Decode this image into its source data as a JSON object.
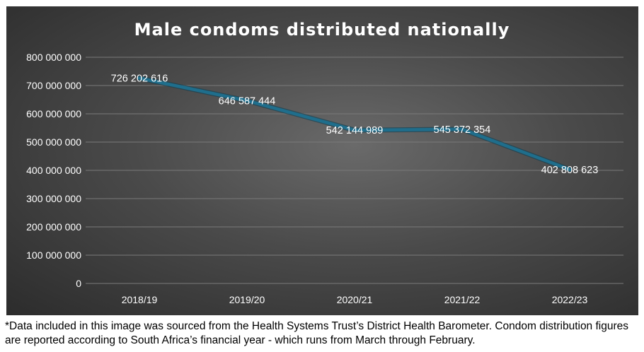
{
  "chart_data": {
    "type": "line",
    "title": "Male condoms distributed nationally",
    "categories": [
      "2018/19",
      "2019/20",
      "2020/21",
      "2021/22",
      "2022/23"
    ],
    "series": [
      {
        "values": [
          726202616,
          646587444,
          542144989,
          545372354,
          402808623
        ],
        "labels": [
          "726 202 616",
          "646 587 444",
          "542 144 989",
          "545 372 354",
          "402 808 623"
        ]
      }
    ],
    "ylim": [
      0,
      800000000
    ],
    "yticks": [
      0,
      100000000,
      200000000,
      300000000,
      400000000,
      500000000,
      600000000,
      700000000,
      800000000
    ],
    "ytick_labels": [
      "0",
      "100 000 000",
      "200 000 000",
      "300 000 000",
      "400 000 000",
      "500 000 000",
      "600 000 000",
      "700 000 000",
      "800 000 000"
    ],
    "grid": true,
    "colors": {
      "line": "#1f6e8c",
      "background": "#3f3f3f",
      "grid": "#7a7a7a",
      "text": "#ffffff"
    }
  },
  "caption": "*Data included in this image was sourced from the Health Systems Trust’s District Health Barometer. Condom distribution figures are reported according to South Africa’s financial year - which runs from March through February."
}
